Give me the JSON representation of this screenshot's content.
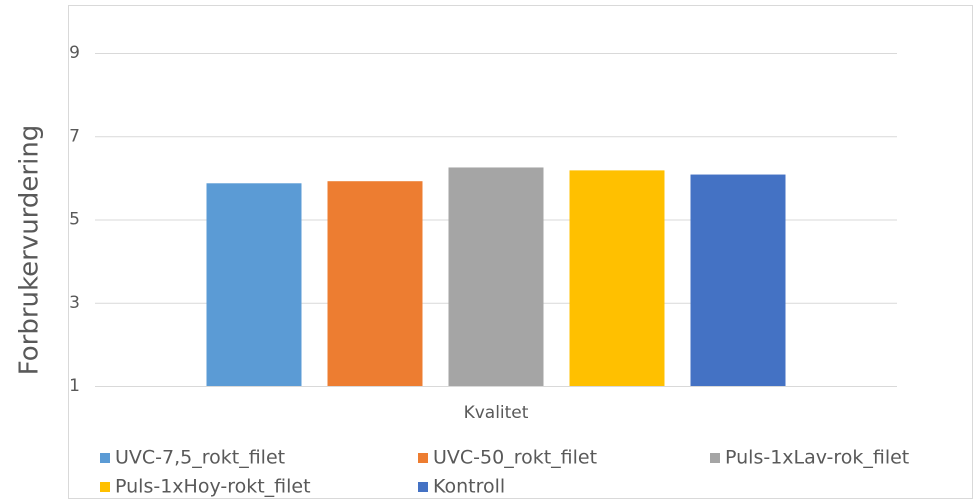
{
  "chart_data": {
    "type": "bar",
    "y_label": "Forbrukervurdering",
    "categories": [
      "Kvalitet"
    ],
    "series": [
      {
        "name": "UVC-7,5_rokt_filet",
        "color": "#5b9bd5",
        "values": [
          5.87
        ]
      },
      {
        "name": "UVC-50_rokt_filet",
        "color": "#ed7d31",
        "values": [
          5.92
        ]
      },
      {
        "name": "Puls-1xLav-rok_filet",
        "color": "#a5a5a5",
        "values": [
          6.25
        ]
      },
      {
        "name": "Puls-1xHoy-rokt_filet",
        "color": "#ffc000",
        "values": [
          6.18
        ]
      },
      {
        "name": "Kontroll",
        "color": "#4472c4",
        "values": [
          6.08
        ]
      }
    ],
    "ylim": [
      1,
      9
    ],
    "yticks": [
      1,
      3,
      5,
      7,
      9
    ],
    "grid": true,
    "legend": "bottom"
  }
}
